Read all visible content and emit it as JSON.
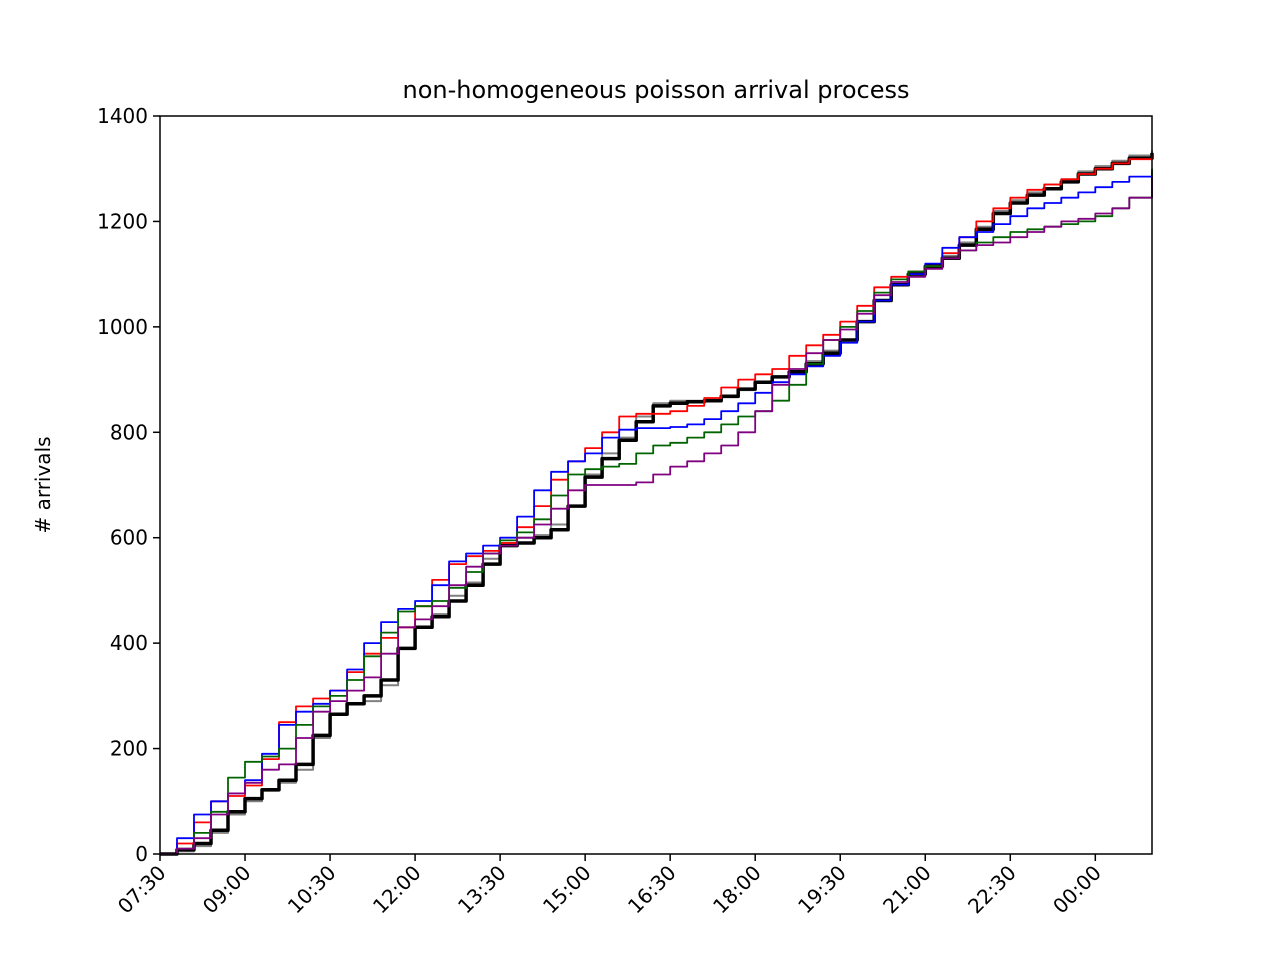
{
  "chart_data": {
    "type": "line",
    "title": "non-homogeneous poisson arrival process",
    "xlabel": "",
    "ylabel": "# arrivals",
    "x_units": "hours since 07:30",
    "xlim": [
      0,
      17.5
    ],
    "ylim": [
      0,
      1400
    ],
    "xticks": [
      {
        "x": 0,
        "label": "07:30"
      },
      {
        "x": 1.5,
        "label": "09:00"
      },
      {
        "x": 3,
        "label": "10:30"
      },
      {
        "x": 4.5,
        "label": "12:00"
      },
      {
        "x": 6,
        "label": "13:30"
      },
      {
        "x": 7.5,
        "label": "15:00"
      },
      {
        "x": 9,
        "label": "16:30"
      },
      {
        "x": 10.5,
        "label": "18:00"
      },
      {
        "x": 12,
        "label": "19:30"
      },
      {
        "x": 13.5,
        "label": "21:00"
      },
      {
        "x": 15,
        "label": "22:30"
      },
      {
        "x": 16.5,
        "label": "00:00"
      }
    ],
    "yticks": [
      0,
      200,
      400,
      600,
      800,
      1000,
      1200,
      1400
    ],
    "grid": false,
    "legend": "none",
    "series": [
      {
        "color": "#808080",
        "width": 2,
        "x": [
          0,
          0.3,
          0.6,
          0.9,
          1.2,
          1.5,
          1.8,
          2.1,
          2.4,
          2.7,
          3.0,
          3.3,
          3.6,
          3.9,
          4.2,
          4.5,
          4.8,
          5.1,
          5.4,
          5.7,
          6.0,
          6.3,
          6.6,
          6.9,
          7.2,
          7.5,
          7.8,
          8.1,
          8.4,
          8.7,
          9.0,
          9.3,
          9.6,
          9.9,
          10.2,
          10.5,
          10.8,
          11.1,
          11.4,
          11.7,
          12.0,
          12.3,
          12.6,
          12.9,
          13.2,
          13.5,
          13.8,
          14.1,
          14.4,
          14.7,
          15.0,
          15.3,
          15.6,
          15.9,
          16.2,
          16.5,
          16.8,
          17.1,
          17.5
        ],
        "y": [
          0,
          5,
          15,
          40,
          75,
          100,
          120,
          135,
          160,
          220,
          265,
          285,
          290,
          320,
          390,
          430,
          455,
          490,
          515,
          560,
          590,
          600,
          605,
          625,
          660,
          720,
          760,
          790,
          830,
          855,
          860,
          860,
          862,
          870,
          880,
          895,
          905,
          915,
          935,
          955,
          975,
          1010,
          1050,
          1080,
          1100,
          1115,
          1135,
          1160,
          1190,
          1220,
          1240,
          1255,
          1270,
          1280,
          1295,
          1305,
          1315,
          1325,
          1335
        ]
      },
      {
        "color": "#000000",
        "width": 3.5,
        "x": [
          0,
          0.3,
          0.6,
          0.9,
          1.2,
          1.5,
          1.8,
          2.1,
          2.4,
          2.7,
          3.0,
          3.3,
          3.6,
          3.9,
          4.2,
          4.5,
          4.8,
          5.1,
          5.4,
          5.7,
          6.0,
          6.3,
          6.6,
          6.9,
          7.2,
          7.5,
          7.8,
          8.1,
          8.4,
          8.7,
          9.0,
          9.3,
          9.6,
          9.9,
          10.2,
          10.5,
          10.8,
          11.1,
          11.4,
          11.7,
          12.0,
          12.3,
          12.6,
          12.9,
          13.2,
          13.5,
          13.8,
          14.1,
          14.4,
          14.7,
          15.0,
          15.3,
          15.6,
          15.9,
          16.2,
          16.5,
          16.8,
          17.1,
          17.5
        ],
        "y": [
          0,
          8,
          20,
          45,
          80,
          105,
          122,
          140,
          170,
          225,
          265,
          285,
          300,
          330,
          390,
          430,
          450,
          480,
          510,
          550,
          585,
          590,
          600,
          615,
          660,
          715,
          750,
          785,
          820,
          850,
          855,
          858,
          860,
          868,
          882,
          895,
          905,
          915,
          930,
          950,
          975,
          1010,
          1050,
          1080,
          1100,
          1115,
          1130,
          1155,
          1185,
          1215,
          1235,
          1250,
          1262,
          1275,
          1290,
          1300,
          1310,
          1320,
          1330
        ]
      },
      {
        "color": "#ff0000",
        "width": 1.8,
        "x": [
          0,
          0.3,
          0.6,
          0.9,
          1.2,
          1.5,
          1.8,
          2.1,
          2.4,
          2.7,
          3.0,
          3.3,
          3.6,
          3.9,
          4.2,
          4.5,
          4.8,
          5.1,
          5.4,
          5.7,
          6.0,
          6.3,
          6.6,
          6.9,
          7.2,
          7.5,
          7.8,
          8.1,
          8.4,
          8.7,
          9.0,
          9.3,
          9.6,
          9.9,
          10.2,
          10.5,
          10.8,
          11.1,
          11.4,
          11.7,
          12.0,
          12.3,
          12.6,
          12.9,
          13.2,
          13.5,
          13.8,
          14.1,
          14.4,
          14.7,
          15.0,
          15.3,
          15.6,
          15.9,
          16.2,
          16.5,
          16.8,
          17.1,
          17.5
        ],
        "y": [
          0,
          20,
          60,
          100,
          110,
          130,
          180,
          250,
          280,
          295,
          310,
          345,
          380,
          410,
          430,
          470,
          520,
          550,
          565,
          575,
          590,
          620,
          660,
          710,
          745,
          770,
          800,
          830,
          835,
          835,
          840,
          850,
          865,
          885,
          900,
          910,
          920,
          945,
          965,
          985,
          1010,
          1040,
          1075,
          1095,
          1105,
          1115,
          1140,
          1170,
          1200,
          1225,
          1245,
          1260,
          1270,
          1280,
          1290,
          1300,
          1310,
          1318,
          1325
        ]
      },
      {
        "color": "#0000ff",
        "width": 1.8,
        "x": [
          0,
          0.3,
          0.6,
          0.9,
          1.2,
          1.5,
          1.8,
          2.1,
          2.4,
          2.7,
          3.0,
          3.3,
          3.6,
          3.9,
          4.2,
          4.5,
          4.8,
          5.1,
          5.4,
          5.7,
          6.0,
          6.3,
          6.6,
          6.9,
          7.2,
          7.5,
          7.8,
          8.1,
          8.4,
          8.7,
          9.0,
          9.3,
          9.6,
          9.9,
          10.2,
          10.5,
          10.8,
          11.1,
          11.4,
          11.7,
          12.0,
          12.3,
          12.6,
          12.9,
          13.2,
          13.5,
          13.8,
          14.1,
          14.4,
          14.7,
          15.0,
          15.3,
          15.6,
          15.9,
          16.2,
          16.5,
          16.8,
          17.1,
          17.5
        ],
        "y": [
          0,
          30,
          75,
          100,
          115,
          140,
          190,
          245,
          270,
          285,
          310,
          350,
          400,
          440,
          465,
          480,
          510,
          555,
          570,
          585,
          600,
          640,
          690,
          725,
          745,
          760,
          790,
          805,
          808,
          808,
          810,
          815,
          825,
          840,
          855,
          875,
          895,
          910,
          925,
          945,
          970,
          1010,
          1050,
          1080,
          1100,
          1120,
          1150,
          1170,
          1180,
          1195,
          1210,
          1225,
          1235,
          1245,
          1255,
          1265,
          1275,
          1285,
          1295
        ]
      },
      {
        "color": "#006400",
        "width": 1.8,
        "x": [
          0,
          0.3,
          0.6,
          0.9,
          1.2,
          1.5,
          1.8,
          2.1,
          2.4,
          2.7,
          3.0,
          3.3,
          3.6,
          3.9,
          4.2,
          4.5,
          4.8,
          5.1,
          5.4,
          5.7,
          6.0,
          6.3,
          6.6,
          6.9,
          7.2,
          7.5,
          7.8,
          8.1,
          8.4,
          8.7,
          9.0,
          9.3,
          9.6,
          9.9,
          10.2,
          10.5,
          10.8,
          11.1,
          11.4,
          11.7,
          12.0,
          12.3,
          12.6,
          12.9,
          13.2,
          13.5,
          13.8,
          14.1,
          14.4,
          14.7,
          15.0,
          15.3,
          15.6,
          15.9,
          16.2,
          16.5,
          16.8,
          17.1,
          17.5
        ],
        "y": [
          0,
          10,
          40,
          80,
          145,
          175,
          185,
          200,
          245,
          280,
          300,
          330,
          375,
          420,
          460,
          470,
          480,
          505,
          535,
          570,
          595,
          610,
          635,
          680,
          720,
          730,
          735,
          740,
          760,
          775,
          780,
          790,
          800,
          815,
          830,
          840,
          860,
          890,
          930,
          975,
          1000,
          1030,
          1065,
          1090,
          1105,
          1115,
          1130,
          1145,
          1160,
          1170,
          1180,
          1185,
          1190,
          1195,
          1200,
          1210,
          1225,
          1245,
          1300
        ]
      },
      {
        "color": "#800080",
        "width": 1.8,
        "x": [
          0,
          0.3,
          0.6,
          0.9,
          1.2,
          1.5,
          1.8,
          2.1,
          2.4,
          2.7,
          3.0,
          3.3,
          3.6,
          3.9,
          4.2,
          4.5,
          4.8,
          5.1,
          5.4,
          5.7,
          6.0,
          6.3,
          6.6,
          6.9,
          7.2,
          7.5,
          7.8,
          8.1,
          8.4,
          8.7,
          9.0,
          9.3,
          9.6,
          9.9,
          10.2,
          10.5,
          10.8,
          11.1,
          11.4,
          11.7,
          12.0,
          12.3,
          12.6,
          12.9,
          13.2,
          13.5,
          13.8,
          14.1,
          14.4,
          14.7,
          15.0,
          15.3,
          15.6,
          15.9,
          16.2,
          16.5,
          16.8,
          17.1,
          17.5
        ],
        "y": [
          0,
          10,
          30,
          75,
          115,
          135,
          160,
          170,
          220,
          270,
          290,
          310,
          335,
          380,
          430,
          445,
          470,
          510,
          545,
          570,
          585,
          600,
          625,
          655,
          690,
          700,
          700,
          700,
          705,
          720,
          735,
          745,
          760,
          775,
          800,
          840,
          890,
          920,
          950,
          975,
          995,
          1025,
          1060,
          1085,
          1095,
          1110,
          1130,
          1145,
          1155,
          1160,
          1170,
          1180,
          1190,
          1200,
          1205,
          1215,
          1225,
          1245,
          1285
        ]
      }
    ]
  }
}
